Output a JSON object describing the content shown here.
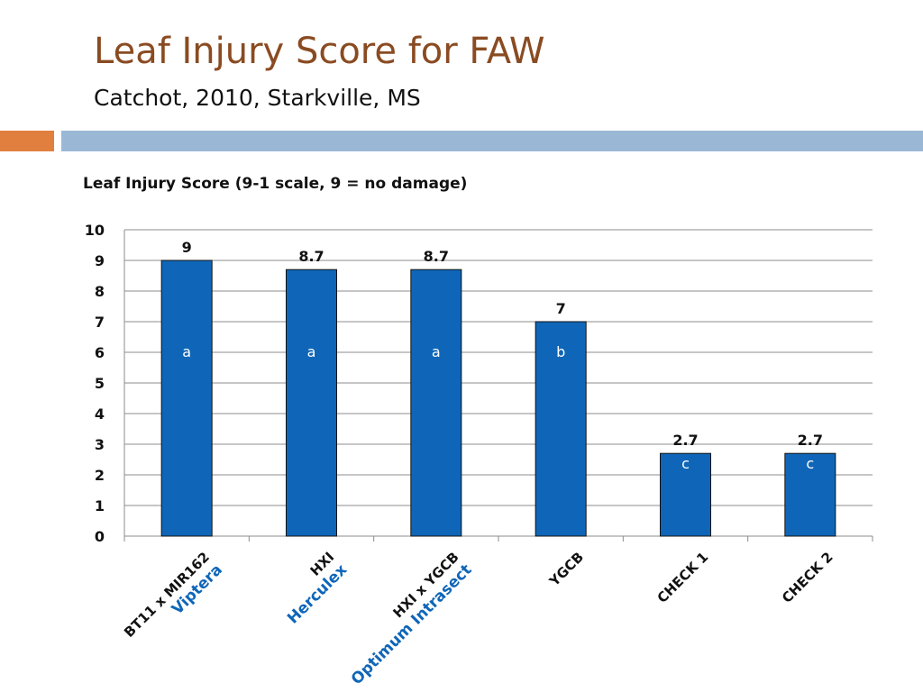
{
  "slide": {
    "title": "Leaf Injury Score for FAW",
    "subtitle": "Catchot, 2010, Starkville, MS"
  },
  "colors": {
    "title": "#8a4b22",
    "bar": "#0f66b8",
    "bar_stroke": "#111111",
    "trade_name": "#0f66b8",
    "band_orange": "#e07f3e",
    "band_blue": "#9ab8d6"
  },
  "chart_data": {
    "type": "bar",
    "title": "Leaf Injury Score (9-1 scale, 9 = no damage)",
    "categories": [
      {
        "label": "BT11 x MIR162",
        "trade_name": "Viptera"
      },
      {
        "label": "HXI",
        "trade_name": "Herculex"
      },
      {
        "label": "HXI x YGCB",
        "trade_name": "Optimum Intrasect"
      },
      {
        "label": "YGCB",
        "trade_name": ""
      },
      {
        "label": "CHECK 1",
        "trade_name": ""
      },
      {
        "label": "CHECK 2",
        "trade_name": ""
      }
    ],
    "values": [
      9,
      8.7,
      8.7,
      7,
      2.7,
      2.7
    ],
    "data_labels": [
      "9",
      "8.7",
      "8.7",
      "7",
      "2.7",
      "2.7"
    ],
    "significance_letters": [
      "a",
      "a",
      "a",
      "b",
      "c",
      "c"
    ],
    "ylim": [
      0,
      10
    ],
    "yticks": [
      0,
      1,
      2,
      3,
      4,
      5,
      6,
      7,
      8,
      9,
      10
    ],
    "grid": true,
    "xlabel": "",
    "ylabel": ""
  }
}
